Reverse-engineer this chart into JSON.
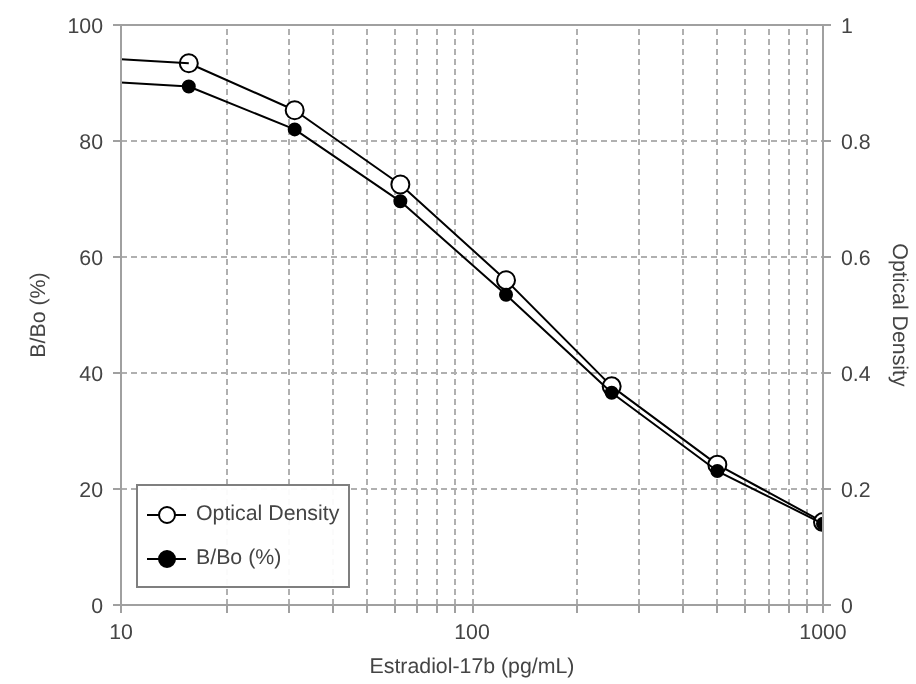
{
  "chart_data": {
    "type": "line",
    "xlabel": "Estradiol-17b (pg/mL)",
    "ylabel": "B/Bo (%)",
    "y2label": "Optical Density",
    "log": "x",
    "xlim": [
      10,
      1000
    ],
    "xticks": [
      10,
      {
        "value": 20,
        "label": null
      },
      {
        "value": 30,
        "label": null
      },
      {
        "value": 40,
        "label": null
      },
      {
        "value": 50,
        "label": null
      },
      {
        "value": 60,
        "label": null
      },
      {
        "value": 70,
        "label": null
      },
      {
        "value": 80,
        "label": null
      },
      {
        "value": 90,
        "label": null
      },
      100,
      {
        "value": 200,
        "label": null
      },
      {
        "value": 300,
        "label": null
      },
      {
        "value": 400,
        "label": null
      },
      {
        "value": 500,
        "label": null
      },
      {
        "value": 600,
        "label": null
      },
      {
        "value": 700,
        "label": null
      },
      {
        "value": 800,
        "label": null
      },
      {
        "value": 900,
        "label": null
      },
      1000
    ],
    "ylim": [
      0,
      100
    ],
    "yticks": [
      0,
      20,
      40,
      60,
      80,
      100
    ],
    "y2lim": [
      0,
      1
    ],
    "y2ticks": [
      0,
      0.2,
      0.4,
      0.6,
      0.8,
      1
    ],
    "grid": true,
    "legend": "bottom left",
    "line_style": "solid",
    "series": [
      {
        "name": "Optical Density",
        "color": "#000000",
        "axis": "y2",
        "marker": "open circle",
        "x": [
          15.6,
          31.25,
          62.5,
          125,
          250,
          500,
          1000
        ],
        "values": [
          0.934,
          0.853,
          0.725,
          0.56,
          0.377,
          0.242,
          0.143
        ]
      },
      {
        "name": "B/Bo (%)",
        "color": "#000000",
        "axis": "y",
        "marker": "circle",
        "x": [
          15.6,
          31.25,
          62.5,
          125,
          250,
          500,
          1000
        ],
        "values": [
          89.4,
          82,
          69.6,
          53.5,
          36.6,
          23.1,
          14
        ]
      },
      {
        "color": "#000000",
        "axis": "y2",
        "marker": "none",
        "x": [
          10,
          15.6
        ],
        "values": [
          0.941,
          0.934
        ]
      },
      {
        "color": "#000000",
        "axis": "y",
        "marker": "none",
        "x": [
          10,
          15.6
        ],
        "values": [
          90.1,
          89.4
        ]
      }
    ]
  }
}
